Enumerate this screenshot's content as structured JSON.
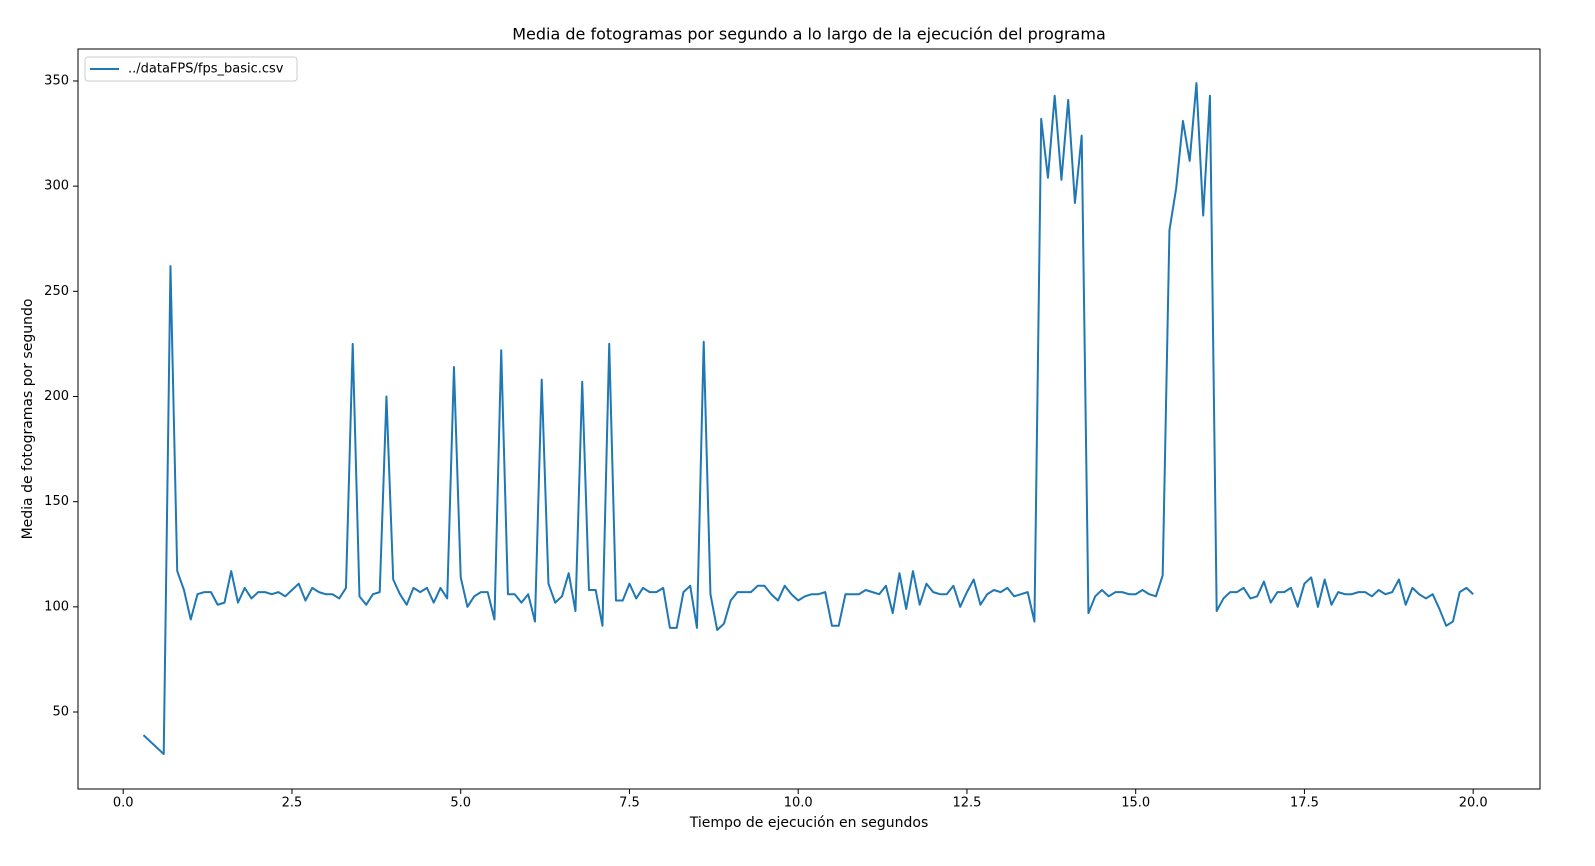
{
  "chart_data": {
    "type": "line",
    "title": "Media de fotogramas por segundo a lo largo de la ejecución del programa",
    "x_label": "Tiempo de ejecución en segundos",
    "y_label": "Media de fotogramas por segundo",
    "x": [
      0.3,
      0.6,
      0.7,
      0.8,
      0.9,
      1,
      1.1,
      1.2,
      1.3,
      1.4,
      1.5,
      1.6,
      1.7,
      1.8,
      1.9,
      2,
      2.1,
      2.2,
      2.3,
      2.4,
      2.5,
      2.6,
      2.7,
      2.8,
      2.9,
      3,
      3.1,
      3.2,
      3.3,
      3.4,
      3.5,
      3.6,
      3.7,
      3.8,
      3.9,
      4,
      4.1,
      4.2,
      4.3,
      4.4,
      4.5,
      4.6,
      4.7,
      4.8,
      4.9,
      5,
      5.1,
      5.2,
      5.3,
      5.4,
      5.5,
      5.6,
      5.7,
      5.8,
      5.9,
      6,
      6.1,
      6.2,
      6.3,
      6.4,
      6.5,
      6.6,
      6.7,
      6.8,
      6.9,
      7,
      7.1,
      7.2,
      7.3,
      7.4,
      7.5,
      7.6,
      7.7,
      7.8,
      7.9,
      8,
      8.1,
      8.2,
      8.3,
      8.4,
      8.5,
      8.6,
      8.7,
      8.8,
      8.9,
      9,
      9.1,
      9.2,
      9.3,
      9.4,
      9.5,
      9.6,
      9.7,
      9.8,
      9.9,
      10,
      10.1,
      10.2,
      10.3,
      10.4,
      10.5,
      10.6,
      10.7,
      10.8,
      10.9,
      11,
      11.1,
      11.2,
      11.3,
      11.4,
      11.5,
      11.6,
      11.7,
      11.8,
      11.9,
      12,
      12.1,
      12.2,
      12.3,
      12.4,
      12.5,
      12.6,
      12.7,
      12.8,
      12.9,
      13,
      13.1,
      13.2,
      13.3,
      13.4,
      13.5,
      13.6,
      13.7,
      13.8,
      13.9,
      14,
      14.1,
      14.2,
      14.3,
      14.4,
      14.5,
      14.6,
      14.7,
      14.8,
      14.9,
      15,
      15.1,
      15.2,
      15.3,
      15.4,
      15.5,
      15.6,
      15.7,
      15.8,
      15.9,
      16,
      16.1,
      16.2,
      16.3,
      16.4,
      16.5,
      16.6,
      16.7,
      16.8,
      16.9,
      17,
      17.1,
      17.2,
      17.3,
      17.4,
      17.5,
      17.6,
      17.7,
      17.8,
      17.9,
      18,
      18.1,
      18.2,
      18.3,
      18.4,
      18.5,
      18.6,
      18.7,
      18.8,
      18.9,
      19,
      19.1,
      19.2,
      19.3,
      19.4,
      19.5,
      19.6,
      19.7,
      19.8,
      19.9,
      20
    ],
    "series": [
      {
        "name": "../dataFPS/fps_basic.csv",
        "color": "#1f77b4",
        "values": [
          39,
          30,
          262,
          117,
          108,
          94,
          106,
          107,
          107,
          101,
          102,
          117,
          102,
          109,
          104,
          107,
          107,
          106,
          107,
          105,
          108,
          111,
          103,
          109,
          107,
          106,
          106,
          104,
          109,
          225,
          105,
          101,
          106,
          107,
          200,
          113,
          106,
          101,
          109,
          107,
          109,
          102,
          109,
          104,
          214,
          114,
          100,
          105,
          107,
          107,
          94,
          222,
          106,
          106,
          102,
          106,
          93,
          208,
          111,
          102,
          105,
          116,
          98,
          207,
          108,
          108,
          91,
          225,
          103,
          103,
          111,
          104,
          109,
          107,
          107,
          109,
          90,
          90,
          107,
          110,
          90,
          226,
          106,
          89,
          92,
          103,
          107,
          107,
          107,
          110,
          110,
          106,
          103,
          110,
          106,
          103,
          105,
          106,
          106,
          107,
          91,
          91,
          106,
          106,
          106,
          108,
          107,
          106,
          110,
          97,
          116,
          99,
          117,
          101,
          111,
          107,
          106,
          106,
          110,
          100,
          107,
          113,
          101,
          106,
          108,
          107,
          109,
          105,
          106,
          107,
          93,
          332,
          304,
          343,
          303,
          341,
          292,
          324,
          97,
          105,
          108,
          105,
          107,
          107,
          106,
          106,
          108,
          106,
          105,
          115,
          279,
          299,
          331,
          312,
          349,
          286,
          343,
          98,
          104,
          107,
          107,
          109,
          104,
          105,
          112,
          102,
          107,
          107,
          109,
          100,
          111,
          114,
          100,
          113,
          101,
          107,
          106,
          106,
          107,
          107,
          105,
          108,
          106,
          107,
          113,
          101,
          109,
          106,
          104,
          106,
          99,
          91,
          93,
          107,
          109,
          106
        ]
      }
    ],
    "xlim": [
      -0.67,
      20.99
    ],
    "ylim": [
      13.4,
      365.2
    ],
    "xticks": [
      {
        "value": 0,
        "label": "0.0"
      },
      2.5,
      {
        "value": 5,
        "label": "5.0"
      },
      7.5,
      {
        "value": 10,
        "label": "10.0"
      },
      12.5,
      {
        "value": 15,
        "label": "15.0"
      },
      17.5,
      {
        "value": 20,
        "label": "20.0"
      }
    ],
    "yticks": [
      50,
      100,
      150,
      200,
      250,
      300,
      350
    ],
    "legend": "upper left"
  }
}
